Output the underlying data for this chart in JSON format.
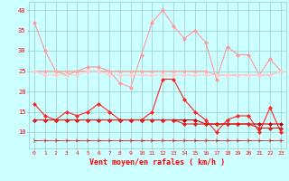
{
  "x": [
    0,
    1,
    2,
    3,
    4,
    5,
    6,
    7,
    8,
    9,
    10,
    11,
    12,
    13,
    14,
    15,
    16,
    17,
    18,
    19,
    20,
    21,
    22,
    23
  ],
  "series": [
    {
      "name": "rafales_max",
      "color": "#ff9999",
      "lw": 0.8,
      "marker": "D",
      "ms": 2.0,
      "values": [
        37,
        30,
        25,
        24,
        25,
        26,
        26,
        25,
        22,
        21,
        29,
        37,
        40,
        36,
        33,
        35,
        32,
        23,
        31,
        29,
        29,
        24,
        28,
        25
      ]
    },
    {
      "name": "rafales_mean1",
      "color": "#ffaaaa",
      "lw": 0.8,
      "marker": "D",
      "ms": 2.0,
      "values": [
        25,
        25,
        25,
        25,
        25,
        25,
        25,
        25,
        25,
        25,
        25,
        25,
        25,
        25,
        25,
        25,
        25,
        24,
        24,
        24,
        24,
        24,
        24,
        25
      ]
    },
    {
      "name": "rafales_mean2",
      "color": "#ffcccc",
      "lw": 0.8,
      "marker": "D",
      "ms": 2.0,
      "values": [
        25,
        24,
        24,
        24,
        24,
        25,
        25,
        24,
        24,
        24,
        24,
        24,
        24,
        24,
        24,
        24,
        24,
        24,
        24,
        24,
        24,
        24,
        24,
        25
      ]
    },
    {
      "name": "vent_peak",
      "color": "#ff2222",
      "lw": 0.8,
      "marker": "D",
      "ms": 2.0,
      "values": [
        17,
        14,
        13,
        15,
        14,
        15,
        17,
        15,
        13,
        13,
        13,
        15,
        23,
        23,
        18,
        15,
        13,
        10,
        13,
        14,
        14,
        10,
        16,
        10
      ]
    },
    {
      "name": "vent_mean1",
      "color": "#cc0000",
      "lw": 0.8,
      "marker": "D",
      "ms": 2.0,
      "values": [
        13,
        13,
        13,
        13,
        13,
        13,
        13,
        13,
        13,
        13,
        13,
        13,
        13,
        13,
        13,
        13,
        12,
        12,
        12,
        12,
        12,
        12,
        12,
        12
      ]
    },
    {
      "name": "vent_mean2",
      "color": "#dd2222",
      "lw": 0.8,
      "marker": "D",
      "ms": 2.0,
      "values": [
        13,
        13,
        13,
        13,
        13,
        13,
        13,
        13,
        13,
        13,
        13,
        13,
        13,
        13,
        12,
        12,
        12,
        12,
        12,
        12,
        12,
        11,
        11,
        11
      ]
    },
    {
      "name": "wind_arrows",
      "color": "#cc0000",
      "lw": 0.5,
      "marker": "4",
      "ms": 4,
      "values": [
        8,
        8,
        8,
        8,
        8,
        8,
        8,
        8,
        8,
        8,
        8,
        8,
        8,
        8,
        8,
        8,
        8,
        8,
        8,
        8,
        8,
        8,
        8,
        8
      ]
    }
  ],
  "bg_color": "#ccffff",
  "grid_color": "#99cccc",
  "text_color": "#ff0000",
  "xlabel": "Vent moyen/en rafales ( km/h )",
  "xlim": [
    -0.5,
    23.5
  ],
  "ylim": [
    6,
    42
  ],
  "yticks": [
    10,
    15,
    20,
    25,
    30,
    35,
    40
  ],
  "xticks": [
    0,
    1,
    2,
    3,
    4,
    5,
    6,
    7,
    8,
    9,
    10,
    11,
    12,
    13,
    14,
    15,
    16,
    17,
    18,
    19,
    20,
    21,
    22,
    23
  ],
  "figsize": [
    3.2,
    2.0
  ],
  "dpi": 100
}
